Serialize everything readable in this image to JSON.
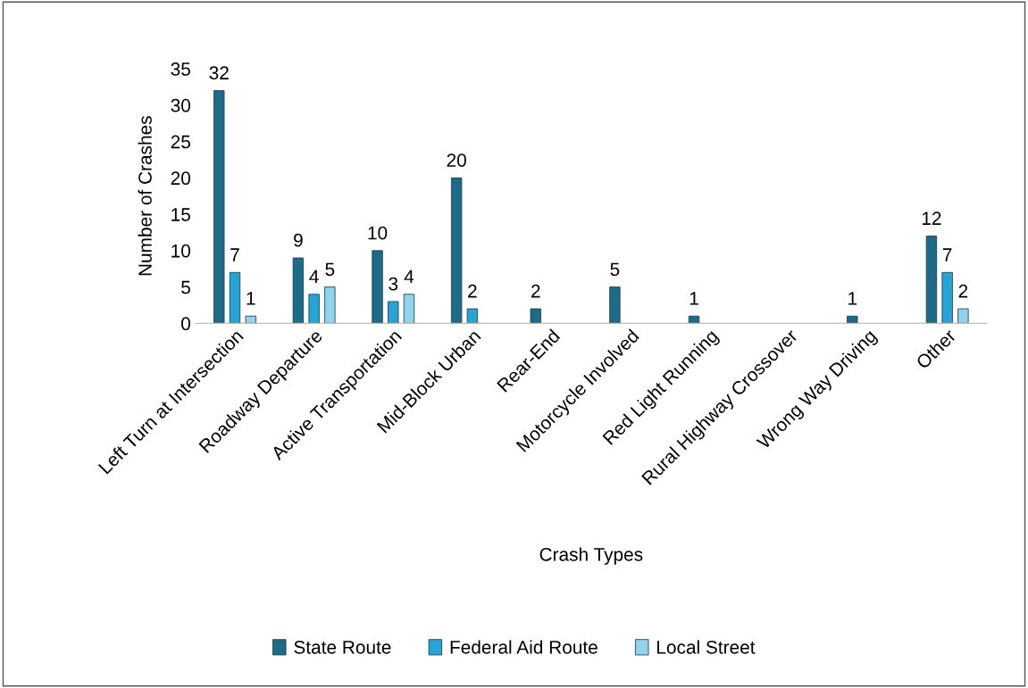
{
  "chart_data": {
    "type": "bar",
    "xlabel": "Crash Types",
    "ylabel": "Number of Crashes",
    "categories": [
      "Left Turn at Intersection",
      "Roadway Departure",
      "Active Transportation",
      "Mid-Block Urban",
      "Rear-End",
      "Motorcycle Involved",
      "Red Light Running",
      "Rural Highway Crossover",
      "Wrong Way Driving",
      "Other"
    ],
    "series": [
      {
        "name": "State Route",
        "color": "#1d6b87",
        "values": [
          32,
          9,
          10,
          20,
          2,
          5,
          1,
          null,
          1,
          12
        ]
      },
      {
        "name": "Federal Aid Route",
        "color": "#27a3d4",
        "values": [
          7,
          4,
          3,
          2,
          null,
          null,
          null,
          null,
          null,
          7
        ]
      },
      {
        "name": "Local Street",
        "color": "#8fd3ec",
        "values": [
          1,
          5,
          4,
          null,
          null,
          null,
          null,
          null,
          null,
          2
        ]
      }
    ],
    "ylim": [
      0,
      35
    ],
    "yticks": [
      0,
      5,
      10,
      15,
      20,
      25,
      30,
      35
    ],
    "grid": false,
    "legend": "bottom",
    "data_labels": true
  }
}
